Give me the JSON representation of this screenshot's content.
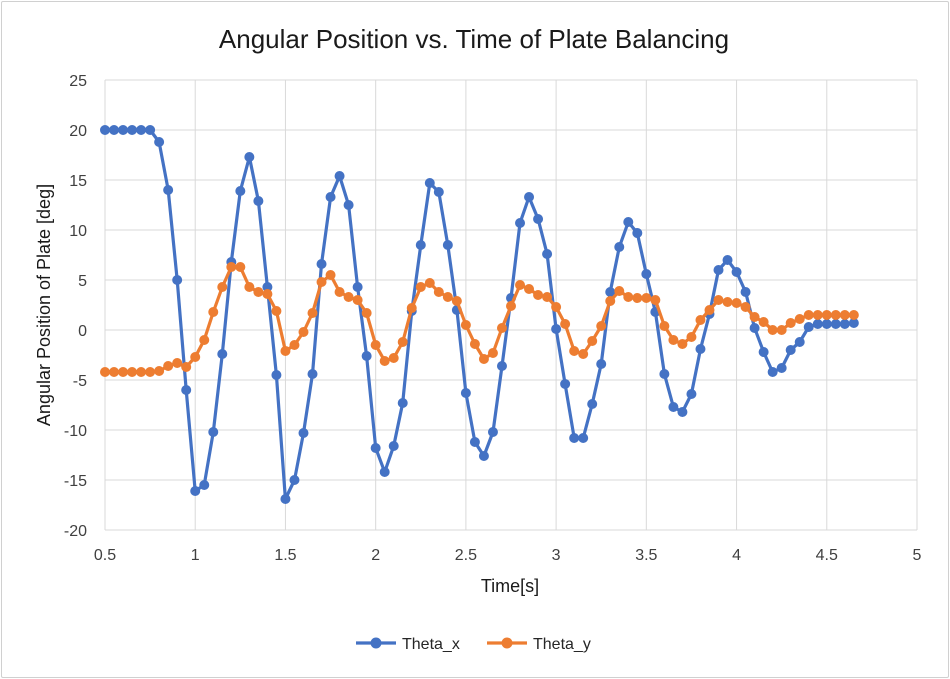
{
  "chart_data": {
    "type": "line",
    "title": "Angular Position vs. Time of Plate Balancing",
    "xlabel": "Time[s]",
    "ylabel": "Angular Position of Plate [deg]",
    "xlim": [
      0.5,
      5
    ],
    "ylim": [
      -20,
      25
    ],
    "x_ticks": [
      "0.5",
      "1",
      "1.5",
      "2",
      "2.5",
      "3",
      "3.5",
      "4",
      "4.5",
      "5"
    ],
    "y_ticks": [
      "-20",
      "-15",
      "-10",
      "-5",
      "0",
      "5",
      "10",
      "15",
      "20",
      "25"
    ],
    "grid": true,
    "legend_position": "bottom",
    "x": [
      0.5,
      0.55,
      0.6,
      0.65,
      0.7,
      0.75,
      0.8,
      0.85,
      0.9,
      0.95,
      1.0,
      1.05,
      1.1,
      1.15,
      1.2,
      1.25,
      1.3,
      1.35,
      1.4,
      1.45,
      1.5,
      1.55,
      1.6,
      1.65,
      1.7,
      1.75,
      1.8,
      1.85,
      1.9,
      1.95,
      2.0,
      2.05,
      2.1,
      2.15,
      2.2,
      2.25,
      2.3,
      2.35,
      2.4,
      2.45,
      2.5,
      2.55,
      2.6,
      2.65,
      2.7,
      2.75,
      2.8,
      2.85,
      2.9,
      2.95,
      3.0,
      3.05,
      3.1,
      3.15,
      3.2,
      3.25,
      3.3,
      3.35,
      3.4,
      3.45,
      3.5,
      3.55,
      3.6,
      3.65,
      3.7,
      3.75,
      3.8,
      3.85,
      3.9,
      3.95,
      4.0,
      4.05,
      4.1,
      4.15,
      4.2,
      4.25,
      4.3,
      4.35,
      4.4,
      4.45,
      4.5,
      4.55,
      4.6,
      4.65
    ],
    "series": [
      {
        "name": "Theta_x",
        "color": "#4472c4",
        "values": [
          20,
          20,
          20,
          20,
          20,
          20,
          18.8,
          14,
          5,
          -6,
          -16.1,
          -15.5,
          -10.2,
          -2.4,
          6.8,
          13.9,
          17.3,
          12.9,
          4.3,
          -4.5,
          -16.9,
          -15,
          -10.3,
          -4.4,
          6.6,
          13.3,
          15.4,
          12.5,
          4.3,
          -2.6,
          -11.8,
          -14.2,
          -11.6,
          -7.3,
          1.9,
          8.5,
          14.7,
          13.8,
          8.5,
          2,
          -6.3,
          -11.2,
          -12.6,
          -10.2,
          -3.6,
          3.2,
          10.7,
          13.3,
          11.1,
          7.6,
          0.1,
          -5.4,
          -10.8,
          -10.8,
          -7.4,
          -3.4,
          3.8,
          8.3,
          10.8,
          9.7,
          5.6,
          1.8,
          -4.4,
          -7.7,
          -8.2,
          -6.4,
          -1.9,
          1.6,
          6,
          7,
          5.8,
          3.8,
          0.2,
          -2.2,
          -4.2,
          -3.8,
          -2,
          -1.2,
          0.3,
          0.6,
          0.6,
          0.6,
          0.6,
          0.7
        ]
      },
      {
        "name": "Theta_y",
        "color": "#ed7d31",
        "values": [
          -4.2,
          -4.2,
          -4.2,
          -4.2,
          -4.2,
          -4.2,
          -4.1,
          -3.6,
          -3.3,
          -3.7,
          -2.7,
          -1,
          1.8,
          4.3,
          6.3,
          6.3,
          4.3,
          3.8,
          3.6,
          1.9,
          -2.1,
          -1.5,
          -0.2,
          1.7,
          4.8,
          5.5,
          3.8,
          3.3,
          3,
          1.7,
          -1.5,
          -3.1,
          -2.8,
          -1.2,
          2.2,
          4.3,
          4.7,
          3.8,
          3.3,
          2.9,
          0.5,
          -1.4,
          -2.9,
          -2.3,
          0.2,
          2.4,
          4.5,
          4.1,
          3.5,
          3.3,
          2.3,
          0.6,
          -2.1,
          -2.4,
          -1.1,
          0.4,
          2.9,
          3.9,
          3.3,
          3.2,
          3.2,
          3,
          0.4,
          -1,
          -1.4,
          -0.7,
          1,
          2,
          3,
          2.8,
          2.7,
          2.3,
          1.3,
          0.8,
          0,
          0,
          0.7,
          1.1,
          1.5,
          1.5,
          1.5,
          1.5,
          1.5,
          1.5
        ]
      }
    ]
  }
}
